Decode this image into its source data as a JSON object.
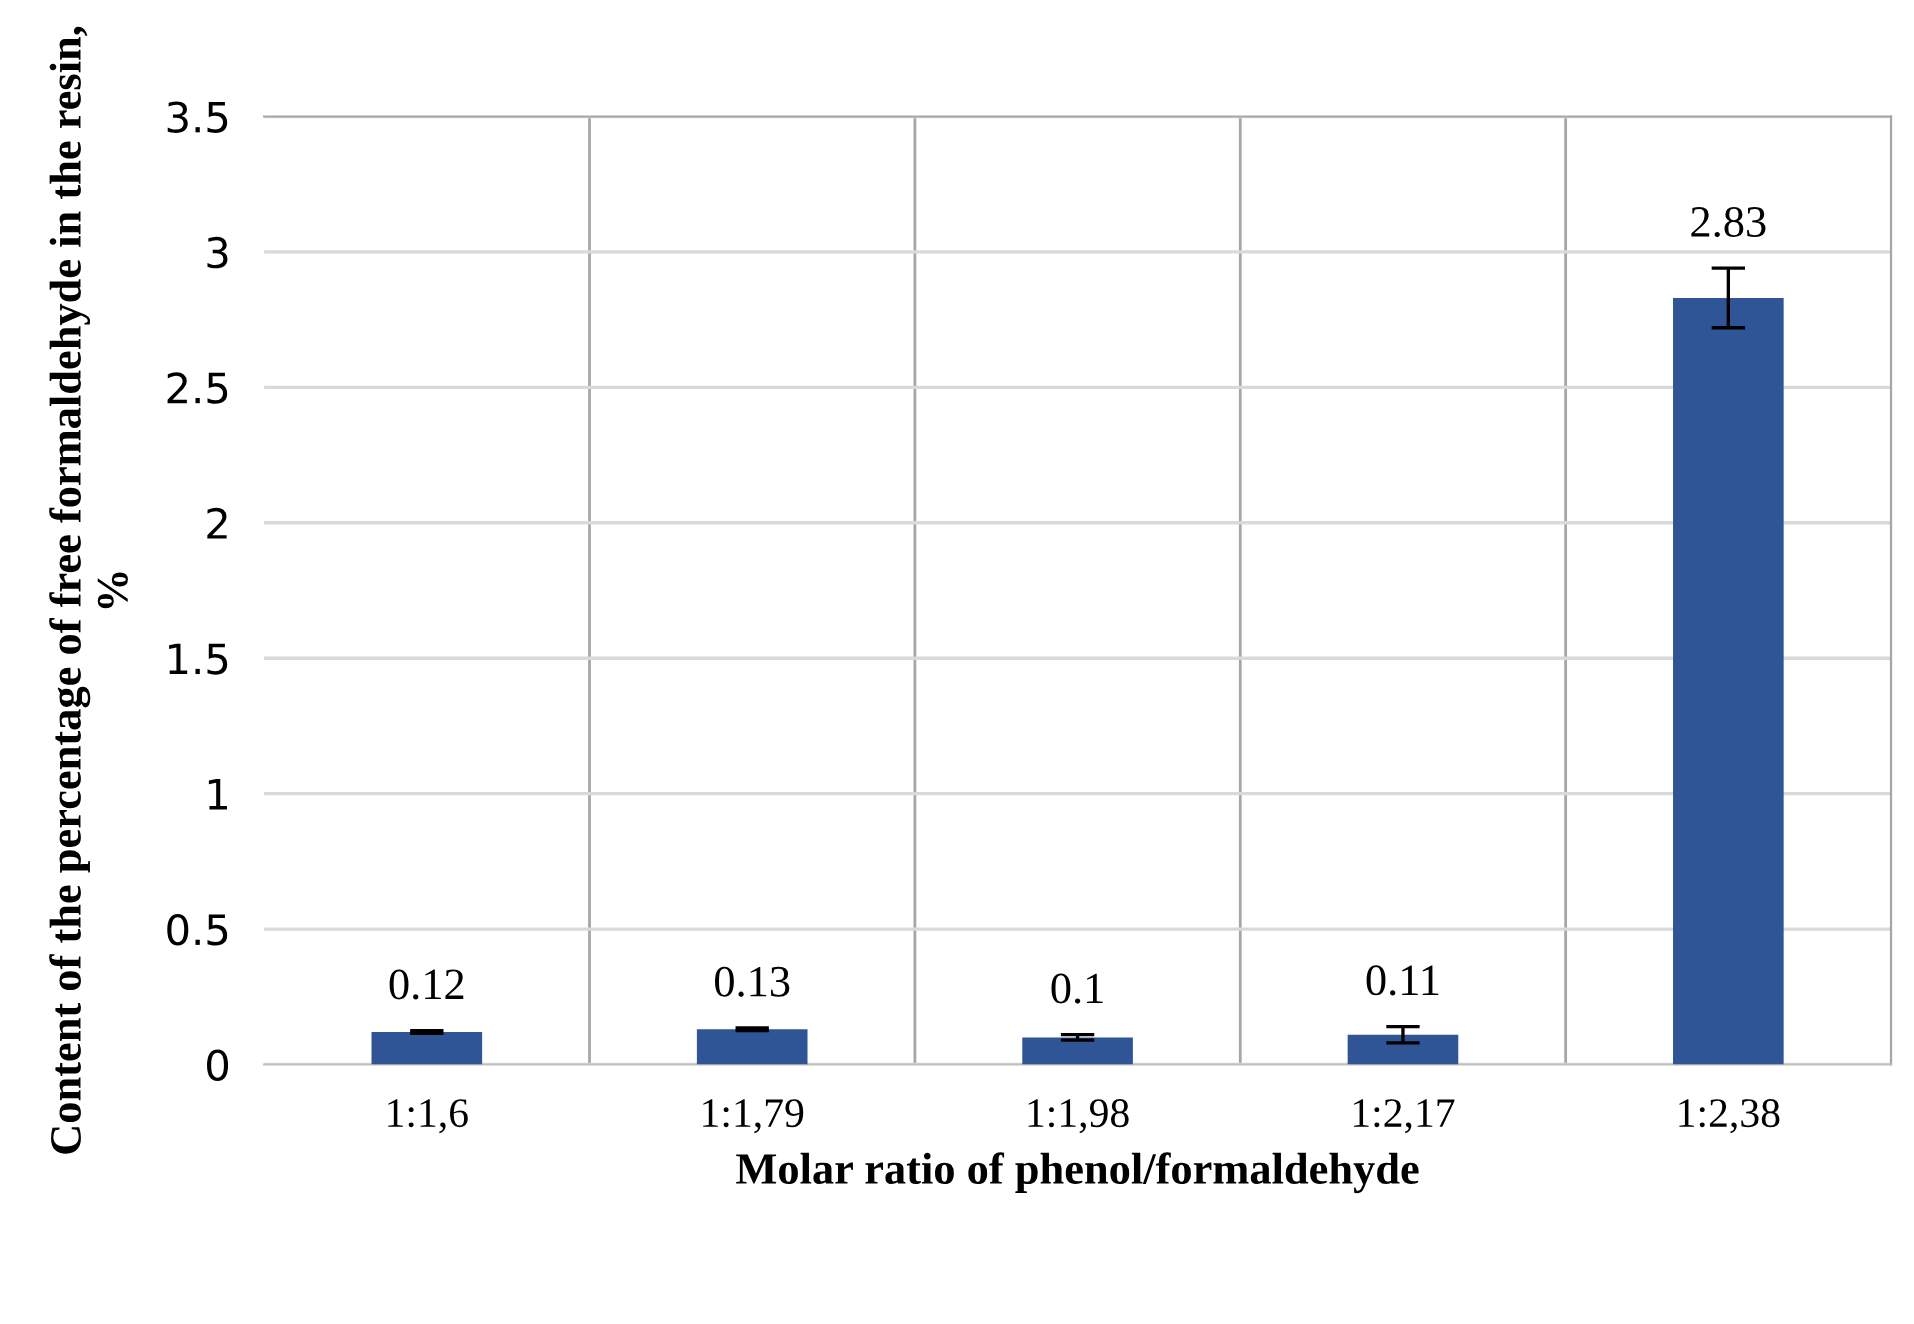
{
  "chart_data": {
    "type": "bar",
    "xlabel": "Molar ratio of phenol/formaldehyde",
    "ylabel": "Content of the percentage of free formaldehyde in the resin, %",
    "categories": [
      "1:1,6",
      "1:1,79",
      "1:1,98",
      "1:2,17",
      "1:2,38"
    ],
    "values": [
      0.12,
      0.13,
      0.1,
      0.11,
      2.83
    ],
    "errors": [
      0.005,
      0.005,
      0.01,
      0.03,
      0.11
    ],
    "color": "#2f5597",
    "ylim": [
      0,
      3.5
    ],
    "yticks": [
      0,
      0.5,
      1,
      1.5,
      2,
      2.5,
      3,
      3.5
    ],
    "grid": true,
    "data_labels": true
  }
}
